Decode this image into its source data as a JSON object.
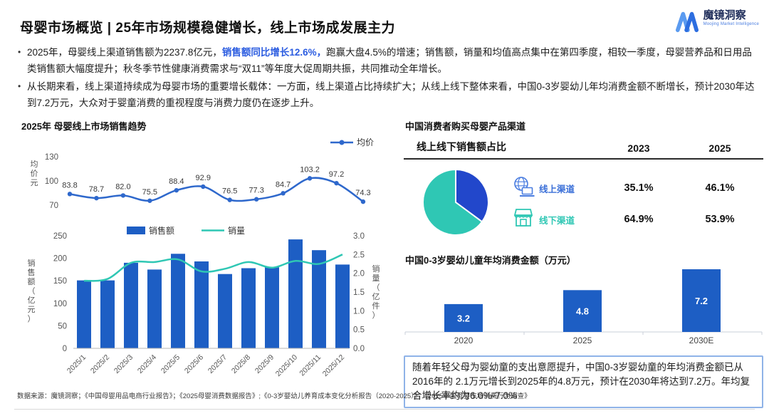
{
  "header": {
    "title": "母婴市场概览 | 25年市场规模稳健增长，线上市场成发展主力",
    "logo": {
      "name": "魔镜洞察",
      "tagline": "Moojing Market Intelligence"
    }
  },
  "bullets": [
    {
      "pre": "2025年，母婴线上渠道销售额为2237.8亿元，",
      "highlight": "销售额同比增长12.6%，",
      "post": "跑赢大盘4.5%的增速；销售额，销量和均值高点集中在第四季度，相较一季度，母婴营养品和日用品类销售额大幅度提升；秋冬季节性健康消费需求与“双11”等年度大促周期共振，共同推动全年增长。"
    },
    {
      "pre": "",
      "highlight": "",
      "post": "从长期来看，线上渠道持续成为母婴市场的重要增长载体：一方面，线上渠道占比持续扩大；从线上线下整体来看，中国0-3岁婴幼儿年均消费金额不断增长，预计2030年达到7.2万元，大众对于婴童消费的重视程度与消费力度仍在逐步上升。"
    }
  ],
  "left_panel": {
    "title": "2025年 母婴线上市场销售趋势"
  },
  "right_panel": {
    "title": "中国消费者购买母婴产品渠道",
    "table": {
      "header": "线上线下销售额占比",
      "years": [
        "2023",
        "2025"
      ],
      "rows": [
        {
          "label": "线上渠道",
          "icon": "online-channel-icon",
          "values": [
            "35.1%",
            "46.1%"
          ],
          "color": "#3a6fd8"
        },
        {
          "label": "线下渠道",
          "icon": "offline-channel-icon",
          "values": [
            "64.9%",
            "53.9%"
          ],
          "color": "#2fc7b4"
        }
      ]
    },
    "bar_title": "中国0-3岁婴幼儿童年均消费金额（万元）",
    "note": "随着年轻父母为婴幼童的支出意愿提升，中国0-3岁婴幼童的年均消费金额已从2016年的 2.1万元增长到2025年的4.8万元，预计在2030年将达到7.2万。年均复合增长率约为6.0%-7.0%"
  },
  "footer": {
    "source": "数据来源：魔镜洞察；《中国母婴用品电商行业报告》；《2025母婴消费数据报告》;《0-3岁婴幼儿养育成本变化分析报告（2020-2025）》；《2025中国母婴市场消费行为调查》"
  },
  "colors": {
    "bar_blue": "#1d5ec4",
    "line_blue": "#2e68cc",
    "teal": "#2fc7b4",
    "pie_blue": "#2247cb",
    "highlight_blue": "#2b5ce0"
  },
  "chart_data": [
    {
      "id": "avg_price",
      "type": "line",
      "title": "2025年 母婴线上市场销售趋势",
      "legend": [
        "均价"
      ],
      "ylabel": "均价元",
      "yticks": [
        130,
        100,
        70
      ],
      "ylim": [
        70,
        130
      ],
      "categories": [
        "2025/1",
        "2025/2",
        "2025/3",
        "2025/4",
        "2025/5",
        "2025/6",
        "2025/7",
        "2025/8",
        "2025/9",
        "2025/10",
        "2025/11",
        "2025/12"
      ],
      "values": [
        83.8,
        78.7,
        82.0,
        75.5,
        88.4,
        92.9,
        76.5,
        77.3,
        84.7,
        103.2,
        97.2,
        74.3
      ]
    },
    {
      "id": "sales_volume",
      "type": "bar+line",
      "categories": [
        "2025/1",
        "2025/2",
        "2025/3",
        "2025/4",
        "2025/5",
        "2025/6",
        "2025/7",
        "2025/8",
        "2025/9",
        "2025/10",
        "2025/11",
        "2025/12"
      ],
      "series": [
        {
          "name": "销售额",
          "type": "bar",
          "axis": "left",
          "values": [
            151,
            151,
            190,
            175,
            210,
            193,
            165,
            178,
            180,
            242,
            218,
            186
          ]
        },
        {
          "name": "销量",
          "type": "line",
          "axis": "right",
          "values": [
            1.8,
            1.85,
            2.28,
            2.3,
            2.37,
            2.05,
            2.12,
            2.3,
            2.15,
            2.33,
            2.25,
            2.5
          ]
        }
      ],
      "left_axis": {
        "label": "销售额（亿元）",
        "ticks": [
          0,
          50,
          100,
          150,
          200,
          250
        ],
        "max": 250
      },
      "right_axis": {
        "label": "销量（亿件）",
        "ticks": [
          0.0,
          0.5,
          1.0,
          1.5,
          2.0,
          2.5,
          3.0
        ],
        "max": 3.0
      }
    },
    {
      "id": "channel_share",
      "type": "pie",
      "labels": [
        "线上渠道",
        "线下渠道"
      ],
      "values": [
        35.1,
        64.9
      ],
      "colors": [
        "#2247cb",
        "#2fc7b4"
      ]
    },
    {
      "id": "consumption",
      "type": "bar",
      "title": "中国0-3岁婴幼儿童年均消费金额（万元）",
      "categories": [
        "2020",
        "2025",
        "2030E"
      ],
      "values": [
        3.2,
        4.8,
        7.2
      ],
      "ylim": [
        0,
        7.5
      ]
    }
  ]
}
